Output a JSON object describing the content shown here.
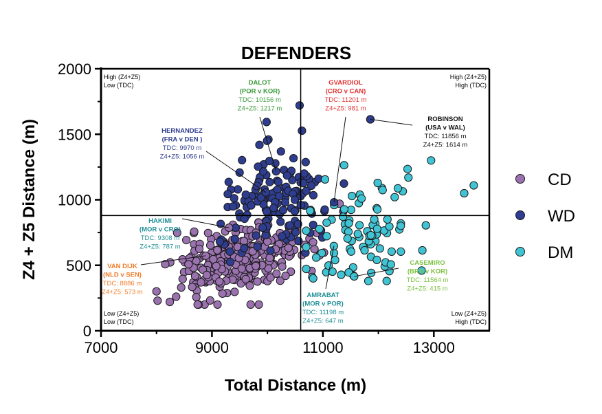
{
  "chart_data": {
    "type": "scatter",
    "title": "DEFENDERS",
    "xlabel": "Total Distance (m)",
    "ylabel": "Z4 + Z5 Distance (m)",
    "xlim": [
      7000,
      14000
    ],
    "ylim": [
      0,
      2000
    ],
    "xticks": [
      7000,
      9000,
      11000,
      13000
    ],
    "yticks": [
      0,
      500,
      1000,
      1500,
      2000
    ],
    "xticklabels": [
      "7000",
      "9000",
      "11000",
      "13000"
    ],
    "yticklabels": [
      "0",
      "500",
      "1000",
      "1500",
      "2000"
    ],
    "reference_lines": {
      "x": 10600,
      "y": 880
    },
    "quadrant_labels": [
      {
        "id": "tl",
        "lines": [
          "High (Z4+Z5)",
          "Low (TDC)"
        ]
      },
      {
        "id": "tr",
        "lines": [
          "High (Z4+Z5)",
          "High (TDC)"
        ]
      },
      {
        "id": "bl",
        "lines": [
          "Low (Z4+Z5)",
          "Low (TDC)"
        ]
      },
      {
        "id": "br",
        "lines": [
          "Low (Z4+Z5)",
          "High (TDC)"
        ]
      }
    ],
    "legend": [
      {
        "name": "CD",
        "color": "#9b72b0"
      },
      {
        "name": "WD",
        "color": "#2e3d8f"
      },
      {
        "name": "DM",
        "color": "#40c4d4"
      }
    ],
    "series": [
      {
        "name": "CD",
        "color": "#9b72b0",
        "count": 300,
        "x_mean": 9500,
        "x_sd": 560,
        "y_mean": 540,
        "y_sd": 135,
        "x_range": [
          8000,
          11300
        ],
        "y_range": [
          200,
          1000
        ]
      },
      {
        "name": "WD",
        "color": "#2e3d8f",
        "count": 150,
        "x_mean": 10200,
        "x_sd": 520,
        "y_mean": 950,
        "y_sd": 200,
        "x_range": [
          8900,
          12700
        ],
        "y_range": [
          420,
          1730
        ]
      },
      {
        "name": "DM",
        "color": "#40c4d4",
        "count": 90,
        "x_mean": 11700,
        "x_sd": 620,
        "y_mean": 780,
        "y_sd": 200,
        "x_range": [
          10700,
          13700
        ],
        "y_range": [
          380,
          1300
        ]
      }
    ],
    "highlighted_points": [
      {
        "x": 13720,
        "y": 1110,
        "series": "DM"
      },
      {
        "x": 12950,
        "y": 1300,
        "series": "DM"
      },
      {
        "x": 10580,
        "y": 1720,
        "series": "WD"
      },
      {
        "x": 11856,
        "y": 1614,
        "series": "WD"
      },
      {
        "x": 8020,
        "y": 230,
        "series": "CD"
      }
    ],
    "annotations": [
      {
        "id": "dalot",
        "color": "#3a9a3a",
        "name": [
          "DALOT",
          "(POR v KOR)"
        ],
        "values": [
          "TDC: 10156 m",
          "Z4+Z5: 1217 m"
        ],
        "x": 10156,
        "y": 1217
      },
      {
        "id": "gvardiol",
        "color": "#e53030",
        "name": [
          "GVARDIOL",
          "(CRO v CAN)"
        ],
        "values": [
          "TDC: 11201 m",
          "Z4+Z5: 981 m"
        ],
        "x": 11201,
        "y": 981
      },
      {
        "id": "robinson",
        "color": "#111111",
        "name": [
          "ROBINSON",
          "(USA v WAL)"
        ],
        "values": [
          "TDC: 11856 m",
          "Z4+Z5: 1614 m"
        ],
        "x": 11856,
        "y": 1614
      },
      {
        "id": "hernandez",
        "color": "#2e3d8f",
        "name": [
          "HERNANDEZ",
          "(FRA v DEN )"
        ],
        "values": [
          "TDC: 9970 m",
          "Z4+Z5: 1056 m"
        ],
        "x": 9970,
        "y": 1056
      },
      {
        "id": "hakimi",
        "color": "#1f8f96",
        "name": [
          "HAKIMI",
          "(MOR v CRO)"
        ],
        "values": [
          "TDC: 9308 m",
          "Z4+Z5: 787 m"
        ],
        "x": 9308,
        "y": 787
      },
      {
        "id": "vandijk",
        "color": "#f07a28",
        "name": [
          "VAN DIJK",
          "(NLD v SEN)"
        ],
        "values": [
          "TDC: 8886 m",
          "Z4+Z5: 573 m"
        ],
        "x": 8886,
        "y": 573
      },
      {
        "id": "amrabat",
        "color": "#1f8f96",
        "name": [
          "AMRABAT",
          "(MOR v POR)"
        ],
        "values": [
          "TDC: 11198 m",
          "Z4+Z5: 647 m"
        ],
        "x": 11198,
        "y": 647
      },
      {
        "id": "casemiro",
        "color": "#7dc040",
        "name": [
          "CASEMIRO",
          "(BRA v KOR)"
        ],
        "values": [
          "TDC: 11564 m",
          "Z4+Z5: 415 m"
        ],
        "x": 11564,
        "y": 415
      }
    ]
  }
}
